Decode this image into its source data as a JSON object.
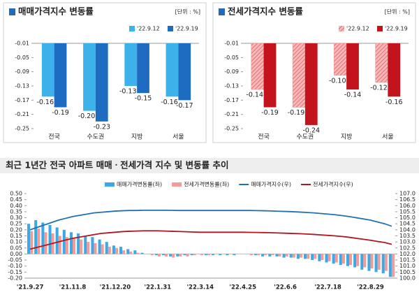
{
  "chart_data": [
    {
      "type": "bar",
      "title": "매매가격지수 변동률",
      "unit": "[단위 : %]",
      "categories": [
        "전국",
        "수도권",
        "지방",
        "서울"
      ],
      "series": [
        {
          "name": "'22.9.12",
          "color": "#3db2ea",
          "values": [
            -0.16,
            -0.2,
            -0.13,
            -0.16
          ],
          "value_labels": [
            "-0.16",
            "-0.20",
            "-0.13",
            "-0.16"
          ]
        },
        {
          "name": "'22.9.19",
          "color": "#1d6cc2",
          "values": [
            -0.19,
            -0.23,
            -0.15,
            -0.17
          ]
        }
      ],
      "ylim": [
        -0.25,
        -0.01
      ],
      "yticks": [
        -0.25,
        -0.21,
        -0.17,
        -0.13,
        -0.09,
        -0.05,
        -0.01
      ],
      "legend": "top-right"
    },
    {
      "type": "bar",
      "title": "전세가격지수 변동률",
      "unit": "[단위 : %]",
      "categories": [
        "전국",
        "수도권",
        "지방",
        "서울"
      ],
      "series": [
        {
          "name": "'22.9.12",
          "color": "#f08a8a",
          "hatch": true,
          "values": [
            -0.14,
            -0.19,
            -0.1,
            -0.12
          ],
          "value_labels": [
            "-0.14",
            "-0.19",
            "-0.10",
            "-0.12"
          ]
        },
        {
          "name": "'22.9.19",
          "color": "#c3141d",
          "values": [
            -0.19,
            -0.24,
            -0.14,
            -0.16
          ]
        }
      ],
      "ylim": [
        -0.25,
        -0.01
      ],
      "yticks": [
        -0.25,
        -0.21,
        -0.17,
        -0.13,
        -0.09,
        -0.05,
        -0.01
      ],
      "legend": "top-right"
    },
    {
      "type": "combo",
      "title": "최근 1년간 전국 아파트 매매ㆍ전세가격 지수 및 변동률 추이",
      "categories": [
        "'21.9.27",
        null,
        null,
        null,
        null,
        null,
        "'21.11.8",
        null,
        null,
        null,
        null,
        null,
        "'21.12.20",
        null,
        null,
        null,
        null,
        null,
        "'22.1.31",
        null,
        null,
        null,
        null,
        null,
        "'22.3.14",
        null,
        null,
        null,
        null,
        null,
        "'22.4.25",
        null,
        null,
        null,
        null,
        null,
        "'22.6.6",
        null,
        null,
        null,
        null,
        null,
        "'22.7.18",
        null,
        null,
        null,
        null,
        null,
        "'22.8.29",
        null,
        null,
        null
      ],
      "series": [
        {
          "name": "매매가격변동률(좌)",
          "type": "bar",
          "color": "#3da9e2",
          "values": [
            0.25,
            0.28,
            0.26,
            0.24,
            0.22,
            0.2,
            0.18,
            0.17,
            0.15,
            0.14,
            0.12,
            0.1,
            0.07,
            0.06,
            0.04,
            0.03,
            0.01,
            0,
            -0.01,
            -0.01,
            -0.02,
            -0.02,
            -0.01,
            -0.01,
            0,
            -0.01,
            -0.01,
            -0.01,
            -0.01,
            -0.01,
            0,
            0,
            -0.01,
            -0.02,
            -0.02,
            -0.02,
            -0.03,
            -0.03,
            -0.04,
            -0.04,
            -0.05,
            -0.06,
            -0.07,
            -0.08,
            -0.09,
            -0.1,
            -0.11,
            -0.13,
            -0.14,
            -0.15,
            -0.16,
            -0.19
          ]
        },
        {
          "name": "전세가격변동률(좌)",
          "type": "bar",
          "color": "#f29b9b",
          "values": [
            0.19,
            0.21,
            0.18,
            0.17,
            0.15,
            0.14,
            0.13,
            0.12,
            0.1,
            0.09,
            0.08,
            0.06,
            0.05,
            0.03,
            0.02,
            0.01,
            0,
            -0.01,
            -0.02,
            -0.02,
            -0.03,
            -0.02,
            -0.02,
            -0.01,
            -0.01,
            -0.01,
            0,
            0,
            0,
            0,
            0,
            -0.01,
            -0.01,
            -0.01,
            -0.01,
            -0.02,
            -0.02,
            -0.03,
            -0.03,
            -0.04,
            -0.04,
            -0.05,
            -0.06,
            -0.07,
            -0.08,
            -0.09,
            -0.1,
            -0.11,
            -0.12,
            -0.13,
            -0.14,
            -0.19
          ]
        },
        {
          "name": "매매가격지수(우)",
          "type": "line",
          "axis": "y2",
          "color": "#2070b4",
          "values": [
            104.0,
            104.2,
            104.4,
            104.6,
            104.8,
            104.95,
            105.1,
            105.2,
            105.3,
            105.4,
            105.45,
            105.5,
            105.55,
            105.58,
            105.6,
            105.6,
            105.62,
            105.62,
            105.62,
            105.62,
            105.61,
            105.6,
            105.6,
            105.6,
            105.6,
            105.6,
            105.6,
            105.6,
            105.6,
            105.6,
            105.6,
            105.6,
            105.59,
            105.58,
            105.56,
            105.54,
            105.52,
            105.5,
            105.47,
            105.44,
            105.4,
            105.35,
            105.3,
            105.25,
            105.18,
            105.1,
            105.0,
            104.9,
            104.8,
            104.65,
            104.5,
            104.3
          ]
        },
        {
          "name": "전세가격지수(우)",
          "type": "line",
          "axis": "y2",
          "color": "#b0161e",
          "values": [
            102.4,
            102.55,
            102.7,
            102.85,
            103.0,
            103.15,
            103.3,
            103.4,
            103.5,
            103.6,
            103.7,
            103.75,
            103.8,
            103.85,
            103.88,
            103.9,
            103.92,
            103.92,
            103.92,
            103.9,
            103.88,
            103.86,
            103.84,
            103.82,
            103.8,
            103.8,
            103.8,
            103.8,
            103.8,
            103.8,
            103.8,
            103.79,
            103.78,
            103.77,
            103.76,
            103.74,
            103.72,
            103.7,
            103.68,
            103.65,
            103.62,
            103.58,
            103.54,
            103.5,
            103.45,
            103.38,
            103.3,
            103.22,
            103.14,
            103.04,
            102.95,
            102.8
          ]
        }
      ],
      "ylim": [
        -0.2,
        0.5
      ],
      "yticks": [
        {
          "value": -0.2,
          "label": "-0.20"
        },
        -0.15,
        {
          "value": -0.1,
          "label": "-0.10"
        },
        -0.05,
        {
          "value": 0,
          "label": "0.00"
        },
        0.05,
        {
          "value": 0.1,
          "label": "0.10"
        },
        0.15,
        {
          "value": 0.2,
          "label": "0.20"
        },
        0.25,
        {
          "value": 0.3,
          "label": "0.30"
        },
        0.35,
        {
          "value": 0.4,
          "label": "0.40"
        },
        0.45,
        {
          "value": 0.5,
          "label": "0.50"
        }
      ],
      "y2lim": [
        100,
        107
      ],
      "y2ticks": [
        {
          "value": 100,
          "label": "100.0"
        },
        100.5,
        {
          "value": 101,
          "label": "101.0"
        },
        101.5,
        {
          "value": 102,
          "label": "102.0"
        },
        102.5,
        {
          "value": 103,
          "label": "103.0"
        },
        103.5,
        {
          "value": 104,
          "label": "104.0"
        },
        104.5,
        {
          "value": 105,
          "label": "105.0"
        },
        105.5,
        {
          "value": 106,
          "label": "106.0"
        },
        106.5,
        {
          "value": 107,
          "label": "107.0"
        }
      ],
      "legend": "top"
    }
  ]
}
